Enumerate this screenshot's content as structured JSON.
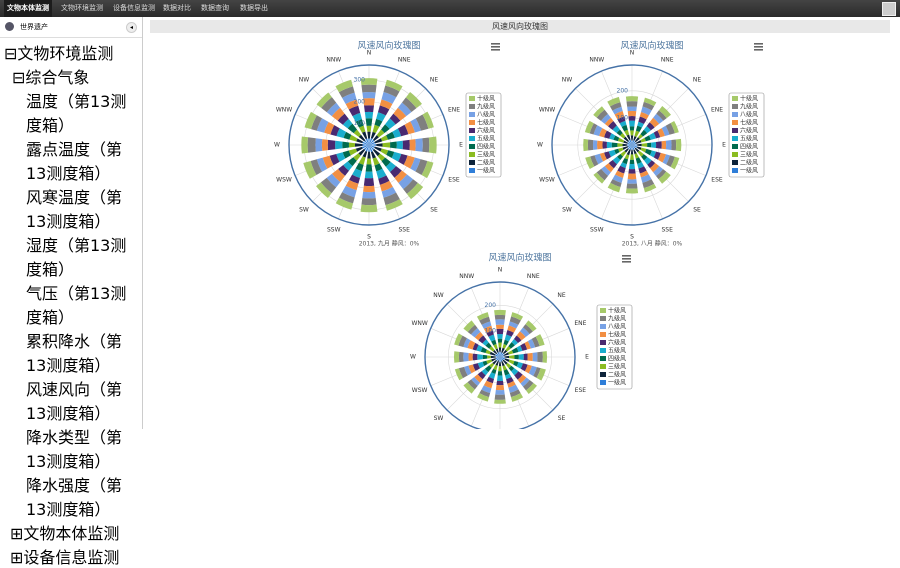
{
  "nav": {
    "items": [
      "文物本体监测",
      "文物环境监测",
      "设备信息监测",
      "数据对比",
      "数据查询",
      "数据导出"
    ],
    "active": 0
  },
  "sidebar": {
    "header": "世界遗产",
    "tree": [
      {
        "label": "文物环境监测",
        "children": [
          {
            "label": "综合气象",
            "children": [
              {
                "label": "温度（第13测度箱）"
              },
              {
                "label": "露点温度（第13测度箱）"
              },
              {
                "label": "风寒温度（第13测度箱）"
              },
              {
                "label": "湿度（第13测度箱）",
                "selected": true
              },
              {
                "label": "气压（第13测度箱）"
              },
              {
                "label": "累积降水（第13测度箱）"
              },
              {
                "label": "风速风向（第13测度箱）"
              },
              {
                "label": "降水类型（第13测度箱）"
              },
              {
                "label": "降水强度（第13测度箱）"
              }
            ]
          }
        ]
      },
      {
        "label": "文物本体监测"
      },
      {
        "label": "设备信息监测"
      }
    ]
  },
  "panel_title": "风速风向玫瑰图",
  "chart_data": [
    {
      "type": "wind-rose",
      "title": "风速风向玫瑰图",
      "subtitle": "2013, 九月  静风：0%",
      "categories": [
        "N",
        "NNE",
        "NE",
        "ENE",
        "E",
        "ESE",
        "SE",
        "SSE",
        "S",
        "SSW",
        "SW",
        "WSW",
        "W",
        "WNW",
        "NW",
        "NNW"
      ],
      "rlim": [
        0,
        370
      ],
      "rticks": [
        100,
        200,
        300
      ],
      "series": [
        {
          "name": "十级风",
          "color": "#a6c96a",
          "values": [
            30,
            28,
            32,
            26,
            34,
            29,
            31,
            27,
            33,
            30,
            28,
            35,
            29,
            31,
            27,
            32
          ]
        },
        {
          "name": "九级风",
          "color": "#7f7f7f",
          "values": [
            34,
            31,
            29,
            36,
            30,
            33,
            28,
            35,
            31,
            29,
            34,
            30,
            36,
            28,
            33,
            30
          ]
        },
        {
          "name": "八级风",
          "color": "#77a1e5",
          "values": [
            28,
            35,
            31,
            29,
            33,
            27,
            36,
            30,
            29,
            34,
            31,
            28,
            30,
            35,
            29,
            33
          ]
        },
        {
          "name": "七级风",
          "color": "#f28f43",
          "values": [
            33,
            29,
            34,
            31,
            27,
            35,
            30,
            32,
            28,
            31,
            36,
            33,
            27,
            30,
            34,
            29
          ]
        },
        {
          "name": "六级风",
          "color": "#492970",
          "values": [
            31,
            33,
            28,
            35,
            32,
            30,
            34,
            29,
            36,
            28,
            30,
            32,
            34,
            29,
            31,
            35
          ]
        },
        {
          "name": "五级风",
          "color": "#1aadce",
          "values": [
            29,
            32,
            35,
            30,
            28,
            34,
            31,
            36,
            30,
            33,
            27,
            31,
            33,
            34,
            28,
            30
          ]
        },
        {
          "name": "四级风",
          "color": "#006a4e",
          "values": [
            35,
            28,
            30,
            33,
            31,
            29,
            33,
            28,
            34,
            30,
            32,
            29,
            31,
            28,
            35,
            31
          ]
        },
        {
          "name": "三级风",
          "color": "#8bbc21",
          "values": [
            27,
            34,
            33,
            28,
            35,
            31,
            29,
            33,
            27,
            35,
            30,
            34,
            28,
            33,
            30,
            28
          ]
        },
        {
          "name": "二级风",
          "color": "#0d233a",
          "values": [
            32,
            30,
            27,
            34,
            29,
            33,
            35,
            31,
            32,
            28,
            33,
            30,
            35,
            29,
            32,
            34
          ]
        },
        {
          "name": "一级风",
          "color": "#2f7ed8",
          "values": [
            30,
            33,
            31,
            29,
            34,
            28,
            30,
            34,
            31,
            32,
            29,
            33,
            30,
            32,
            28,
            31
          ]
        }
      ]
    },
    {
      "type": "wind-rose",
      "title": "风速风向玫瑰图",
      "subtitle": "2013, 八月  静风：0%",
      "categories": [
        "N",
        "NNE",
        "NE",
        "ENE",
        "E",
        "ESE",
        "SE",
        "SSE",
        "S",
        "SSW",
        "SW",
        "WSW",
        "W",
        "WNW",
        "NW",
        "NNW"
      ],
      "rlim": [
        0,
        295
      ],
      "rticks": [
        100,
        200
      ],
      "series": [
        {
          "name": "十级风",
          "color": "#a6c96a",
          "values": [
            18,
            16,
            20,
            15,
            19,
            17,
            21,
            16,
            18,
            20,
            15,
            19,
            17,
            18,
            16,
            20
          ]
        },
        {
          "name": "九级风",
          "color": "#7f7f7f",
          "values": [
            20,
            18,
            16,
            21,
            17,
            19,
            15,
            20,
            18,
            16,
            21,
            17,
            19,
            15,
            20,
            18
          ]
        },
        {
          "name": "八级风",
          "color": "#77a1e5",
          "values": [
            16,
            21,
            19,
            17,
            20,
            15,
            18,
            21,
            16,
            19,
            17,
            20,
            15,
            21,
            18,
            16
          ]
        },
        {
          "name": "七级风",
          "color": "#f28f43",
          "values": [
            19,
            17,
            21,
            18,
            16,
            20,
            19,
            15,
            21,
            17,
            18,
            16,
            20,
            19,
            15,
            21
          ]
        },
        {
          "name": "六级风",
          "color": "#492970",
          "values": [
            17,
            20,
            18,
            16,
            21,
            18,
            16,
            19,
            17,
            21,
            19,
            18,
            16,
            20,
            21,
            17
          ]
        },
        {
          "name": "五级风",
          "color": "#1aadce",
          "values": [
            21,
            15,
            17,
            20,
            18,
            16,
            20,
            18,
            19,
            15,
            20,
            21,
            18,
            16,
            19,
            15
          ]
        },
        {
          "name": "四级风",
          "color": "#006a4e",
          "values": [
            15,
            19,
            20,
            19,
            15,
            21,
            17,
            20,
            15,
            18,
            16,
            15,
            21,
            17,
            16,
            19
          ]
        },
        {
          "name": "三级风",
          "color": "#8bbc21",
          "values": [
            18,
            21,
            15,
            17,
            20,
            19,
            21,
            17,
            20,
            16,
            19,
            17,
            19,
            21,
            17,
            18
          ]
        },
        {
          "name": "二级风",
          "color": "#0d233a",
          "values": [
            20,
            16,
            19,
            21,
            17,
            15,
            18,
            16,
            18,
            21,
            15,
            20,
            17,
            16,
            20,
            19
          ]
        },
        {
          "name": "一级风",
          "color": "#2f7ed8",
          "values": [
            16,
            18,
            17,
            15,
            19,
            21,
            16,
            19,
            17,
            18,
            20,
            16,
            18,
            17,
            19,
            21
          ]
        }
      ]
    },
    {
      "type": "wind-rose",
      "title": "风速风向玫瑰图",
      "categories": [
        "N",
        "NNE",
        "NE",
        "ENE",
        "E",
        "ESE",
        "SE",
        "SSE",
        "S",
        "SSW",
        "SW",
        "WSW",
        "W",
        "WNW",
        "NW",
        "NNW"
      ],
      "rlim": [
        0,
        290
      ],
      "rticks": [
        100,
        200
      ],
      "series": [
        {
          "name": "十级风",
          "color": "#a6c96a",
          "values": [
            19,
            17,
            18,
            20,
            16,
            21,
            17,
            19,
            15,
            18,
            20,
            16,
            19,
            17,
            21,
            18
          ]
        },
        {
          "name": "九级风",
          "color": "#7f7f7f",
          "values": [
            17,
            20,
            16,
            18,
            21,
            15,
            19,
            17,
            20,
            16,
            18,
            21,
            17,
            20,
            16,
            19
          ]
        },
        {
          "name": "八级风",
          "color": "#77a1e5",
          "values": [
            21,
            16,
            19,
            17,
            18,
            20,
            16,
            21,
            18,
            19,
            15,
            17,
            20,
            16,
            19,
            17
          ]
        },
        {
          "name": "七级风",
          "color": "#f28f43",
          "values": [
            16,
            19,
            21,
            15,
            20,
            17,
            18,
            16,
            19,
            21,
            17,
            18,
            16,
            21,
            17,
            20
          ]
        },
        {
          "name": "六级风",
          "color": "#492970",
          "values": [
            20,
            18,
            17,
            19,
            15,
            19,
            21,
            18,
            16,
            17,
            19,
            20,
            18,
            15,
            20,
            16
          ]
        },
        {
          "name": "五级风",
          "color": "#1aadce",
          "values": [
            18,
            21,
            15,
            16,
            19,
            18,
            20,
            15,
            21,
            20,
            16,
            19,
            21,
            18,
            15,
            21
          ]
        },
        {
          "name": "四级风",
          "color": "#006a4e",
          "values": [
            15,
            17,
            20,
            21,
            17,
            16,
            15,
            20,
            17,
            15,
            21,
            15,
            17,
            19,
            18,
            17
          ]
        },
        {
          "name": "三级风",
          "color": "#8bbc21",
          "values": [
            19,
            15,
            18,
            17,
            21,
            20,
            18,
            17,
            19,
            18,
            16,
            20,
            15,
            17,
            19,
            18
          ]
        },
        {
          "name": "二级风",
          "color": "#0d233a",
          "values": [
            17,
            19,
            16,
            20,
            18,
            17,
            21,
            19,
            16,
            20,
            18,
            17,
            19,
            21,
            16,
            15
          ]
        },
        {
          "name": "一级风",
          "color": "#2f7ed8",
          "values": [
            20,
            18,
            19,
            16,
            17,
            21,
            16,
            18,
            20,
            15,
            19,
            18,
            16,
            20,
            18,
            19
          ]
        }
      ]
    }
  ]
}
